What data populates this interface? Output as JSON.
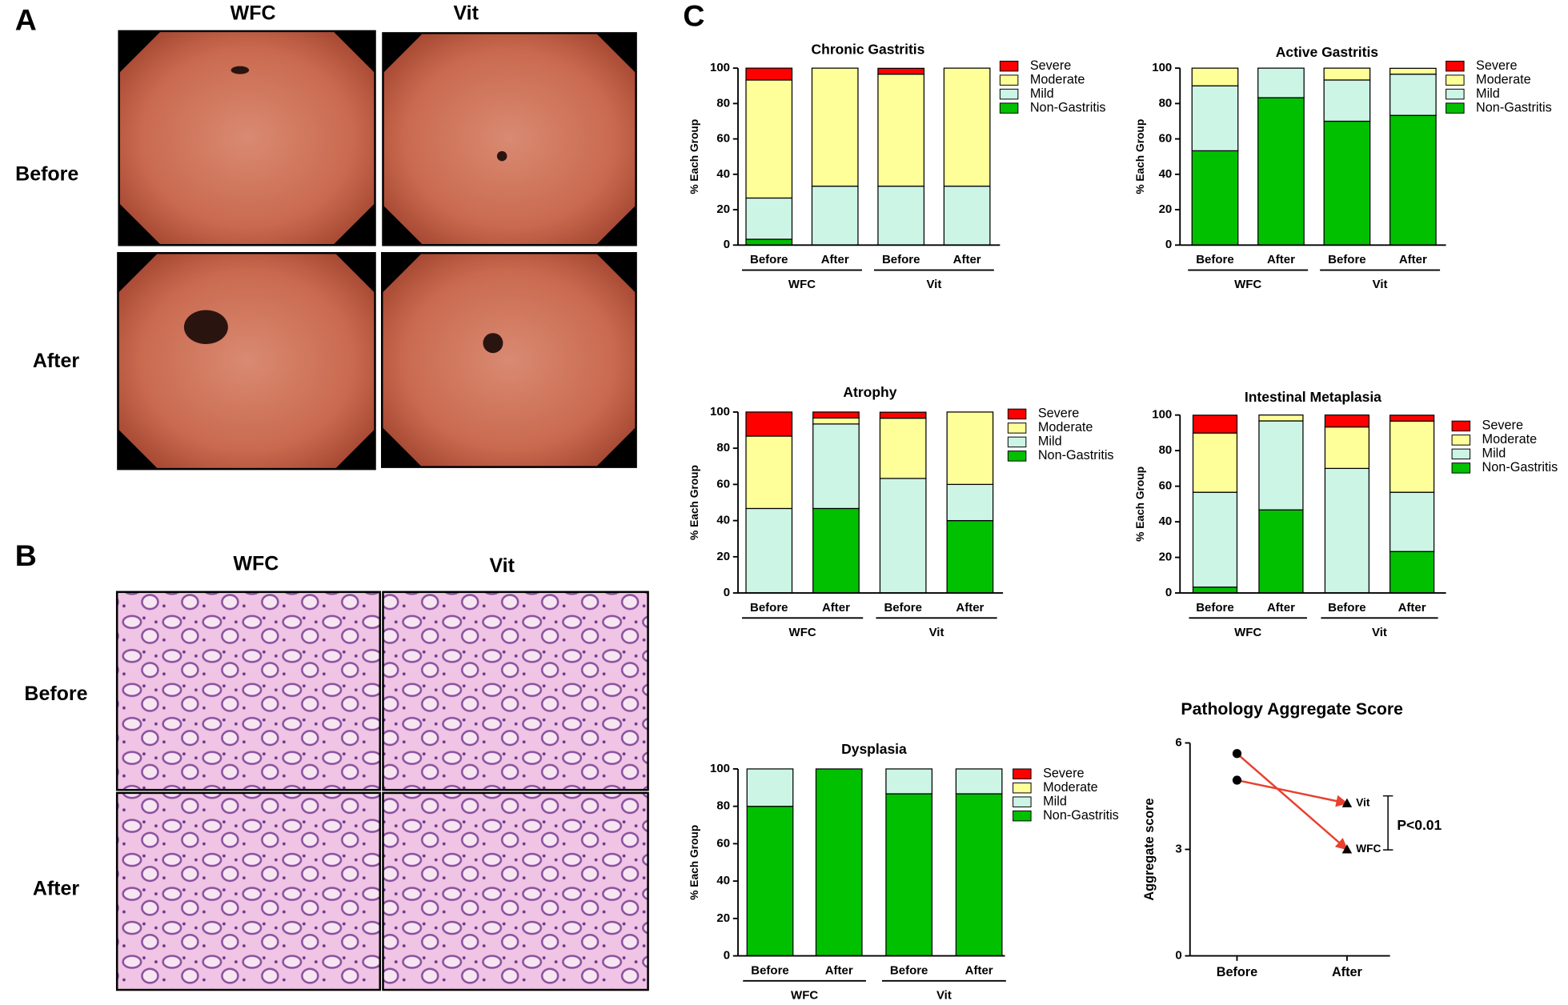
{
  "panel_a": {
    "label": "A",
    "columns": [
      "WFC",
      "Vit"
    ],
    "rows": [
      "Before",
      "After"
    ]
  },
  "panel_b": {
    "label": "B",
    "columns": [
      "WFC",
      "Vit"
    ],
    "rows": [
      "Before",
      "After"
    ]
  },
  "panel_c": {
    "label": "C"
  },
  "chart_data": [
    {
      "type": "stacked-bar",
      "title": "Chronic Gastritis",
      "ylabel": "% Each Group",
      "categories": [
        "Before",
        "After",
        "Before",
        "After"
      ],
      "groups": [
        "WFC",
        "Vit"
      ],
      "ylim": [
        0,
        100
      ],
      "yticks": [
        0,
        20,
        40,
        60,
        80,
        100
      ],
      "legend": "right",
      "series": [
        {
          "name": "Severe",
          "color": "#ff0000",
          "values": [
            6.7,
            0,
            3.3,
            0
          ]
        },
        {
          "name": "Moderate",
          "color": "#ffff99",
          "values": [
            66.7,
            66.7,
            63.3,
            66.7
          ]
        },
        {
          "name": "Mild",
          "color": "#ccf5e6",
          "values": [
            23.3,
            33.3,
            33.3,
            33.3
          ]
        },
        {
          "name": "Non-Gastritis",
          "color": "#00c000",
          "values": [
            3.3,
            0,
            0,
            0
          ]
        }
      ]
    },
    {
      "type": "stacked-bar",
      "title": "Active Gastritis",
      "ylabel": "% Each Group",
      "categories": [
        "Before",
        "After",
        "Before",
        "After"
      ],
      "groups": [
        "WFC",
        "Vit"
      ],
      "ylim": [
        0,
        100
      ],
      "yticks": [
        0,
        20,
        40,
        60,
        80,
        100
      ],
      "legend": "right",
      "series": [
        {
          "name": "Severe",
          "color": "#ff0000",
          "values": [
            0,
            0,
            0,
            0
          ]
        },
        {
          "name": "Moderate",
          "color": "#ffff99",
          "values": [
            10,
            0,
            6.7,
            3.3
          ]
        },
        {
          "name": "Mild",
          "color": "#ccf5e6",
          "values": [
            36.7,
            16.7,
            23.3,
            23.3
          ]
        },
        {
          "name": "Non-Gastritis",
          "color": "#00c000",
          "values": [
            53.3,
            83.3,
            70,
            73.3
          ]
        }
      ]
    },
    {
      "type": "stacked-bar",
      "title": "Atrophy",
      "ylabel": "% Each Group",
      "categories": [
        "Before",
        "After",
        "Before",
        "After"
      ],
      "groups": [
        "WFC",
        "Vit"
      ],
      "ylim": [
        0,
        100
      ],
      "yticks": [
        0,
        20,
        40,
        60,
        80,
        100
      ],
      "legend": "right",
      "series": [
        {
          "name": "Severe",
          "color": "#ff0000",
          "values": [
            13.3,
            3.3,
            3.3,
            0
          ]
        },
        {
          "name": "Moderate",
          "color": "#ffff99",
          "values": [
            40,
            3.3,
            33.3,
            40
          ]
        },
        {
          "name": "Mild",
          "color": "#ccf5e6",
          "values": [
            46.7,
            46.7,
            63.3,
            20
          ]
        },
        {
          "name": "Non-Gastritis",
          "color": "#00c000",
          "values": [
            0,
            46.7,
            0,
            40
          ]
        }
      ]
    },
    {
      "type": "stacked-bar",
      "title": "Intestinal Metaplasia",
      "ylabel": "% Each Group",
      "categories": [
        "Before",
        "After",
        "Before",
        "After"
      ],
      "groups": [
        "WFC",
        "Vit"
      ],
      "ylim": [
        0,
        100
      ],
      "yticks": [
        0,
        20,
        40,
        60,
        80,
        100
      ],
      "legend": "right",
      "series": [
        {
          "name": "Severe",
          "color": "#ff0000",
          "values": [
            10,
            0,
            6.7,
            3.3
          ]
        },
        {
          "name": "Moderate",
          "color": "#ffff99",
          "values": [
            33.3,
            3.3,
            23.3,
            40
          ]
        },
        {
          "name": "Mild",
          "color": "#ccf5e6",
          "values": [
            53.3,
            50,
            70,
            33.3
          ]
        },
        {
          "name": "Non-Gastritis",
          "color": "#00c000",
          "values": [
            3.3,
            46.7,
            0,
            23.3
          ]
        }
      ]
    },
    {
      "type": "stacked-bar",
      "title": "Dysplasia",
      "ylabel": "% Each Group",
      "categories": [
        "Before",
        "After",
        "Before",
        "After"
      ],
      "groups": [
        "WFC",
        "Vit"
      ],
      "ylim": [
        0,
        100
      ],
      "yticks": [
        0,
        20,
        40,
        60,
        80,
        100
      ],
      "legend": "right",
      "series": [
        {
          "name": "Severe",
          "color": "#ff0000",
          "values": [
            0,
            0,
            0,
            0
          ]
        },
        {
          "name": "Moderate",
          "color": "#ffff99",
          "values": [
            0,
            0,
            0,
            0
          ]
        },
        {
          "name": "Mild",
          "color": "#ccf5e6",
          "values": [
            20,
            0,
            13.3,
            13.3
          ]
        },
        {
          "name": "Non-Gastritis",
          "color": "#00c000",
          "values": [
            80,
            100,
            86.7,
            86.7
          ]
        }
      ]
    },
    {
      "type": "line",
      "title": "Pathology Aggregate Score",
      "ylabel": "Aggregate score",
      "categories": [
        "Before",
        "After"
      ],
      "ylim": [
        0,
        6
      ],
      "yticks": [
        0,
        3,
        6
      ],
      "color": "#e8412f",
      "annotation": "P<0.01",
      "series": [
        {
          "name": "Vit",
          "values": [
            4.95,
            4.3
          ]
        },
        {
          "name": "WFC",
          "values": [
            5.7,
            3.0
          ]
        }
      ]
    }
  ]
}
